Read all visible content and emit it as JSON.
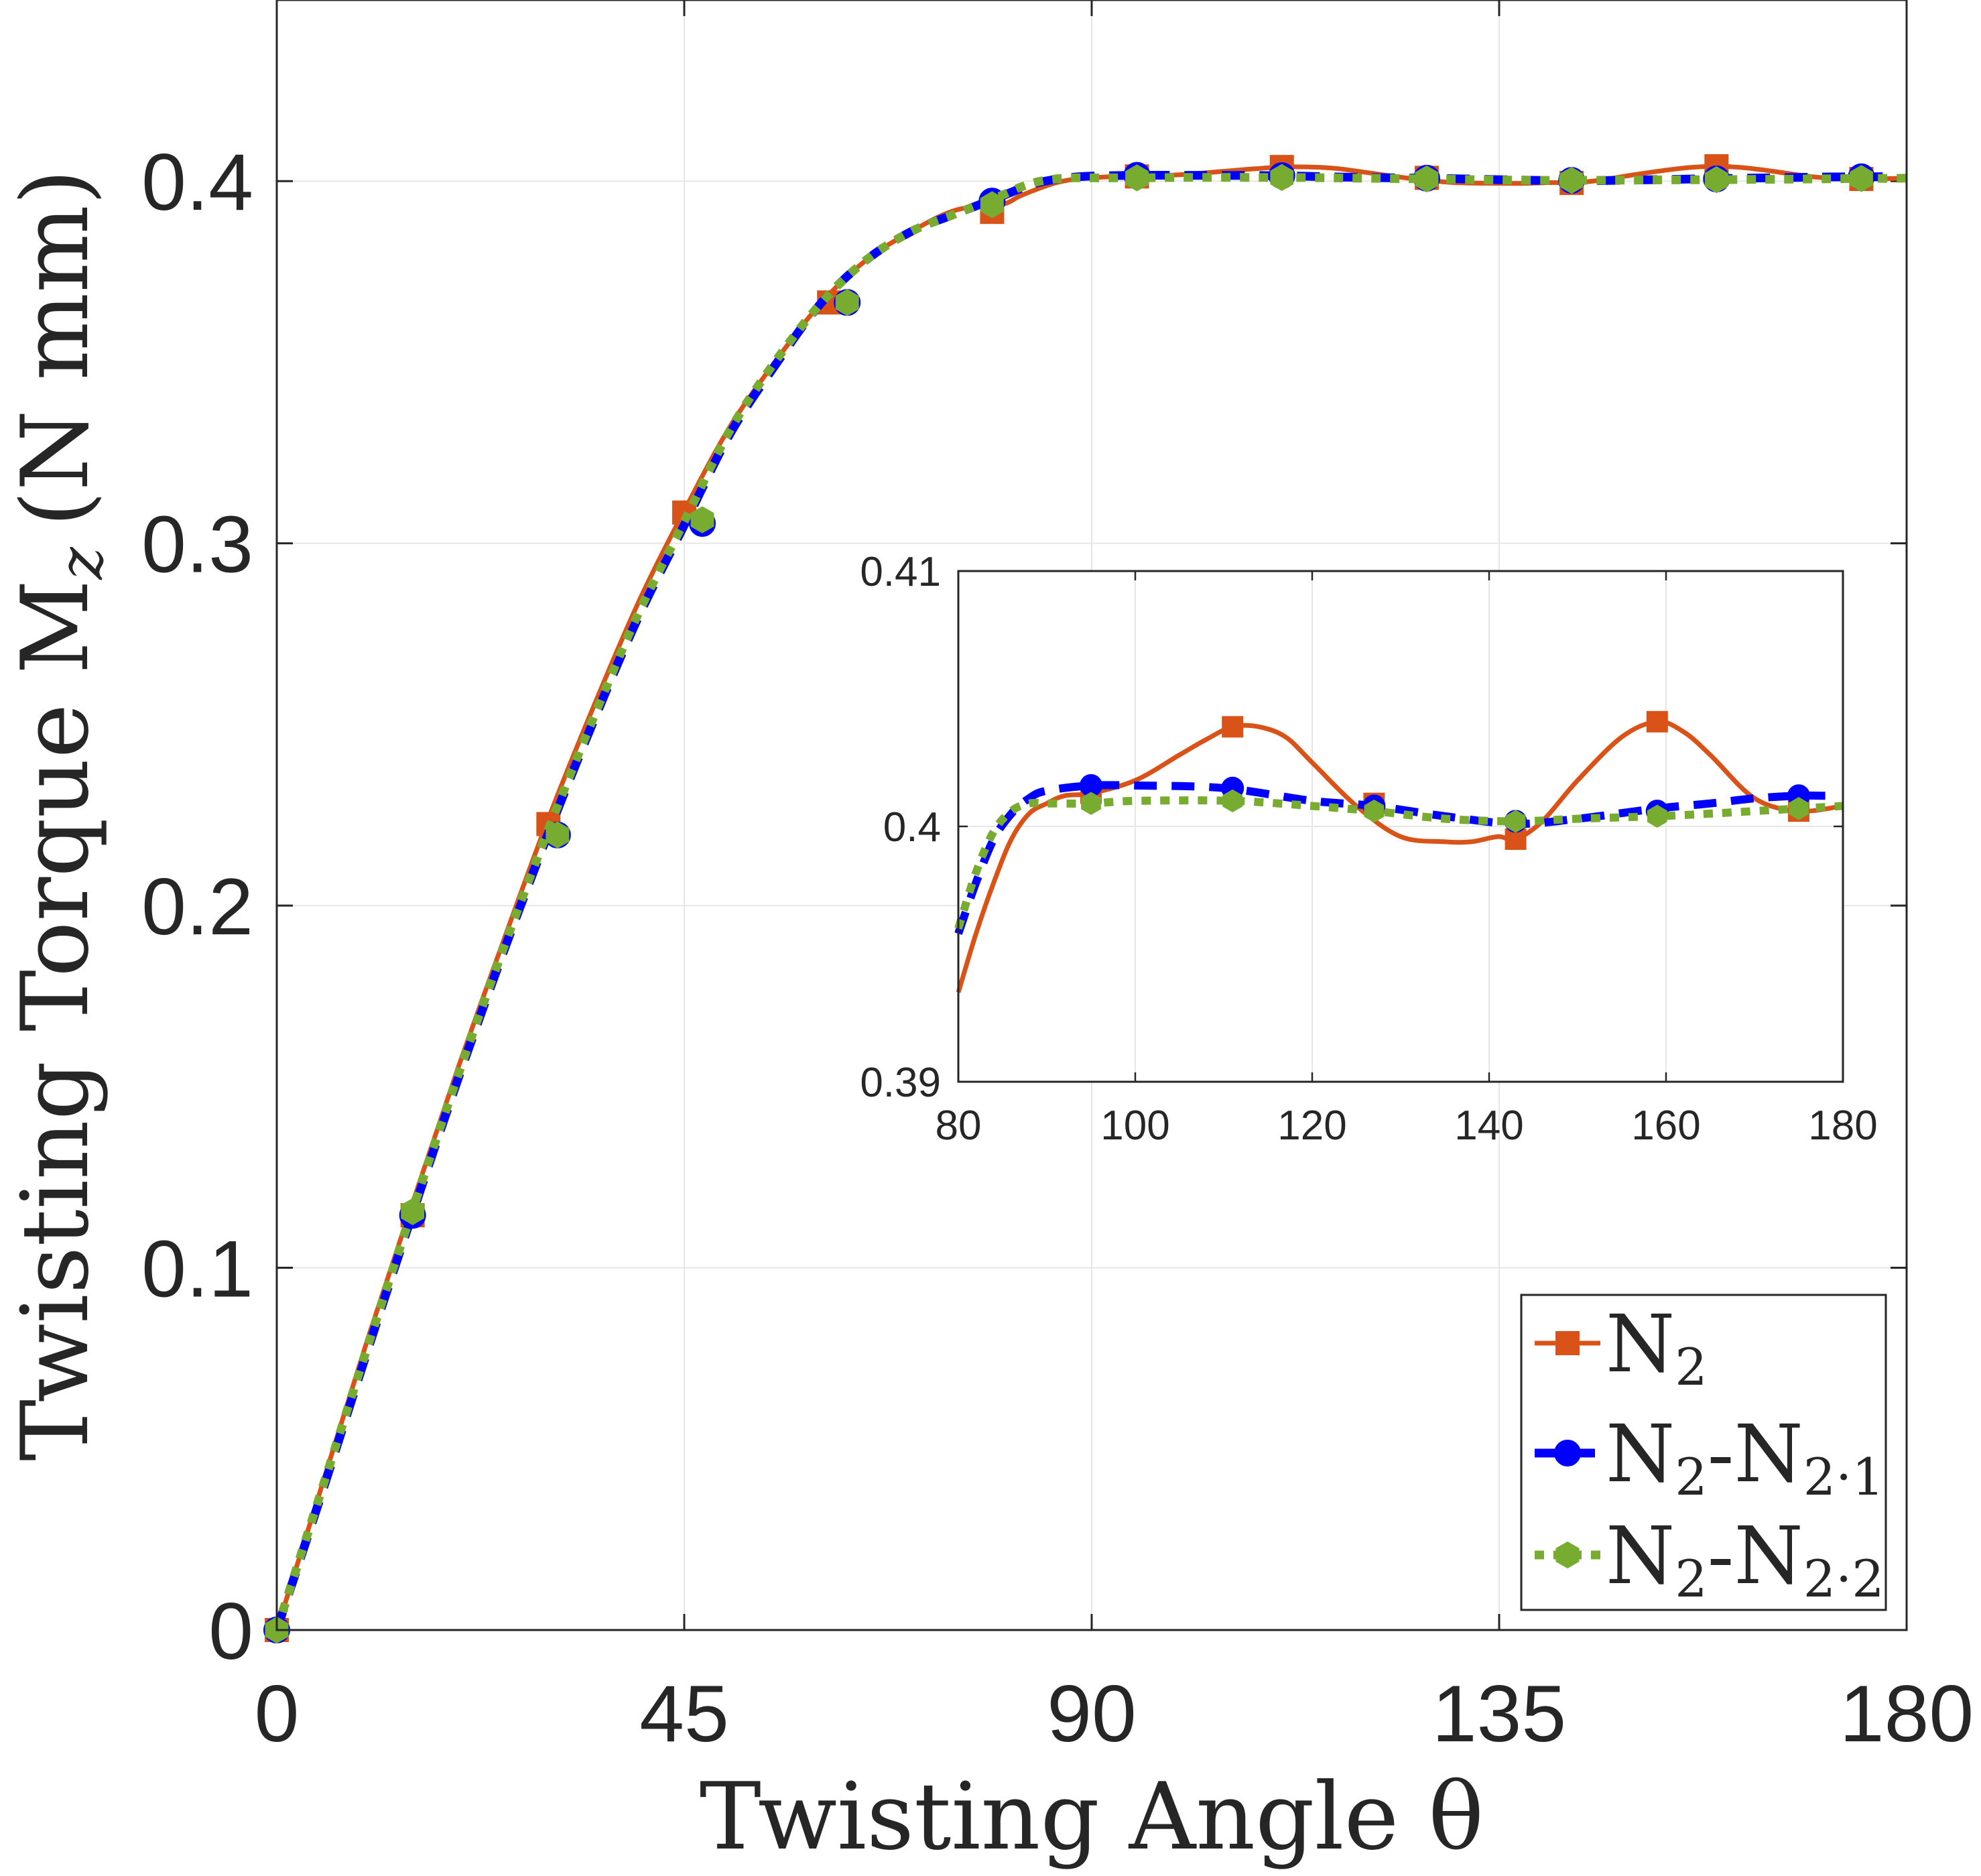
{
  "chart_data": {
    "type": "line",
    "main": {
      "xlabel": "Twisting Angle θ",
      "ylabel_prefix": "Twisting Torque M",
      "ylabel_sub": "z",
      "ylabel_suffix": "(N mm)",
      "xlim": [
        0,
        180
      ],
      "ylim": [
        0,
        0.45
      ],
      "xticks": [
        0,
        45,
        90,
        135,
        180
      ],
      "xtick_labels": [
        "0",
        "45",
        "90",
        "135",
        "180"
      ],
      "yticks": [
        0,
        0.1,
        0.2,
        0.3,
        0.4
      ],
      "ytick_labels": [
        "0",
        "0.1",
        "0.2",
        "0.3",
        "0.4"
      ],
      "grid": true
    },
    "inset": {
      "xlim": [
        80,
        180
      ],
      "ylim": [
        0.39,
        0.41
      ],
      "xticks": [
        80,
        100,
        120,
        140,
        160,
        180
      ],
      "xtick_labels": [
        "80",
        "100",
        "120",
        "140",
        "160",
        "180"
      ],
      "yticks": [
        0.39,
        0.4,
        0.41
      ],
      "ytick_labels": [
        "0.39",
        "0.4",
        "0.41"
      ],
      "grid": true
    },
    "legend_position": "bottom-right",
    "series": [
      {
        "name": "N2",
        "label_main": "N",
        "label_sub": "2",
        "label_tail": "",
        "label_tail_sub": "",
        "color": "#D95319",
        "line": "solid",
        "marker": "square",
        "x": [
          0,
          5,
          10,
          15,
          20,
          25,
          30,
          35,
          40,
          45,
          50,
          55,
          60,
          65,
          70,
          75,
          80,
          82,
          84,
          86,
          88,
          90,
          92,
          95,
          100,
          105,
          108,
          111,
          114,
          117,
          120,
          125,
          130,
          135,
          138,
          141,
          143,
          146,
          150,
          155,
          159,
          162,
          165,
          170,
          175,
          180
        ],
        "y": [
          0,
          0.04,
          0.08,
          0.118,
          0.155,
          0.19,
          0.224,
          0.255,
          0.284,
          0.309,
          0.332,
          0.35,
          0.366,
          0.378,
          0.386,
          0.392,
          0.3935,
          0.3958,
          0.3978,
          0.3995,
          0.4005,
          0.4009,
          0.4012,
          0.4013,
          0.4018,
          0.4028,
          0.4034,
          0.4039,
          0.4039,
          0.4035,
          0.4025,
          0.4008,
          0.3996,
          0.3994,
          0.3994,
          0.3996,
          0.3995,
          0.4002,
          0.4018,
          0.4035,
          0.4041,
          0.4037,
          0.4028,
          0.4011,
          0.4006,
          0.4008
        ],
        "marker_x": [
          0,
          15,
          30,
          45,
          61,
          79,
          95,
          111,
          127,
          143,
          159,
          175
        ],
        "marker_y": [
          0,
          0.1145,
          0.2225,
          0.3085,
          0.3665,
          0.3915,
          0.4013,
          0.4039,
          0.4009,
          0.3995,
          0.4041,
          0.4006
        ]
      },
      {
        "name": "N2-N2·1",
        "label_main": "N",
        "label_sub": "2",
        "label_tail": "-N",
        "label_tail_sub": "2·1",
        "color": "#0000FF",
        "line": "dashed",
        "marker": "circle",
        "x": [
          0,
          5,
          10,
          15,
          20,
          25,
          30,
          35,
          40,
          45,
          50,
          55,
          60,
          65,
          70,
          75,
          80,
          82,
          84,
          86,
          88,
          90,
          95,
          100,
          110,
          120,
          127,
          135,
          143,
          150,
          159,
          165,
          170,
          175,
          178
        ],
        "y": [
          0,
          0.038,
          0.077,
          0.115,
          0.152,
          0.187,
          0.22,
          0.251,
          0.28,
          0.305,
          0.33,
          0.349,
          0.366,
          0.378,
          0.386,
          0.391,
          0.3958,
          0.3978,
          0.3995,
          0.4005,
          0.4011,
          0.4014,
          0.4016,
          0.4016,
          0.4015,
          0.401,
          0.4008,
          0.4004,
          0.4001,
          0.4003,
          0.4007,
          0.4009,
          0.4011,
          0.4012,
          0.4012
        ],
        "marker_x": [
          0,
          15,
          31,
          47,
          63,
          79,
          95,
          111,
          127,
          143,
          159,
          175
        ],
        "marker_y": [
          0,
          0.1145,
          0.2195,
          0.3055,
          0.3665,
          0.3945,
          0.4016,
          0.4015,
          0.4008,
          0.4002,
          0.4006,
          0.4012
        ]
      },
      {
        "name": "N2-N2·2",
        "label_main": "N",
        "label_sub": "2",
        "label_tail": "-N",
        "label_tail_sub": "2·2",
        "color": "#77AC30",
        "line": "dotted",
        "marker": "hexagon",
        "x": [
          0,
          5,
          10,
          15,
          20,
          25,
          30,
          35,
          40,
          45,
          50,
          55,
          60,
          65,
          70,
          75,
          80,
          82,
          84,
          86,
          88,
          90,
          95,
          100,
          111,
          120,
          127,
          135,
          143,
          150,
          159,
          165,
          170,
          175,
          180
        ],
        "y": [
          0,
          0.039,
          0.078,
          0.116,
          0.153,
          0.188,
          0.221,
          0.252,
          0.281,
          0.306,
          0.331,
          0.35,
          0.366,
          0.378,
          0.386,
          0.391,
          0.396,
          0.3982,
          0.3998,
          0.4006,
          0.4009,
          0.4009,
          0.4009,
          0.401,
          0.401,
          0.4008,
          0.4006,
          0.4003,
          0.4002,
          0.4003,
          0.4004,
          0.4005,
          0.4006,
          0.4007,
          0.4008
        ],
        "marker_x": [
          0,
          15,
          31,
          47,
          63,
          79,
          95,
          111,
          127,
          143,
          159,
          175
        ],
        "marker_y": [
          0,
          0.1155,
          0.2195,
          0.3065,
          0.3665,
          0.3935,
          0.4009,
          0.401,
          0.4006,
          0.4002,
          0.4004,
          0.4007
        ]
      }
    ]
  }
}
